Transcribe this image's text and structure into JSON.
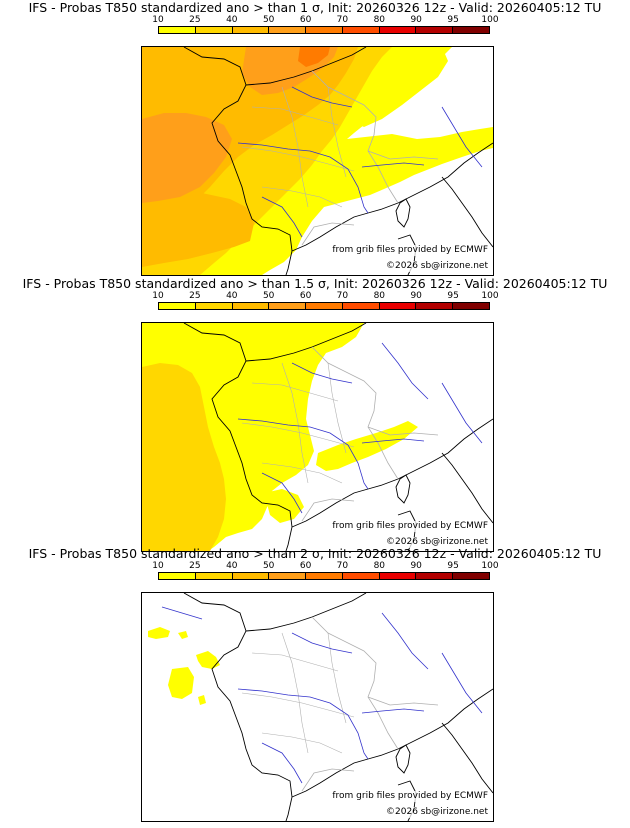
{
  "legend": {
    "ticks": [
      "10",
      "25",
      "40",
      "50",
      "60",
      "70",
      "80",
      "90",
      "95",
      "100"
    ],
    "colors": [
      "#ffff00",
      "#ffd700",
      "#ffbb00",
      "#ff9f1a",
      "#ff7b00",
      "#ff4d00",
      "#e80000",
      "#b30000",
      "#800000"
    ]
  },
  "map_colors": {
    "coast": "#000000",
    "borders": "#b0b0b0",
    "rivers": "#3333cc",
    "background": "#ffffff"
  },
  "panels": [
    {
      "title": "IFS - Probas T850  standardized ano > than 1 σ, Init: 20260326 12z - Valid: 20260405:12 TU",
      "source_credit": "from grib files provided by ECMWF",
      "copyright": "©2026 sb@irizone.net"
    },
    {
      "title": "IFS - Probas T850  standardized ano > than 1.5 σ, Init: 20260326 12z - Valid: 20260405:12 TU",
      "source_credit": "from grib files provided by ECMWF",
      "copyright": "©2026 sb@irizone.net"
    },
    {
      "title": "IFS - Probas T850  standardized ano > than 2 σ, Init: 20260326 12z - Valid: 20260405:12 TU",
      "source_credit": "from grib files provided by ECMWF",
      "copyright": "©2026 sb@irizone.net"
    }
  ]
}
